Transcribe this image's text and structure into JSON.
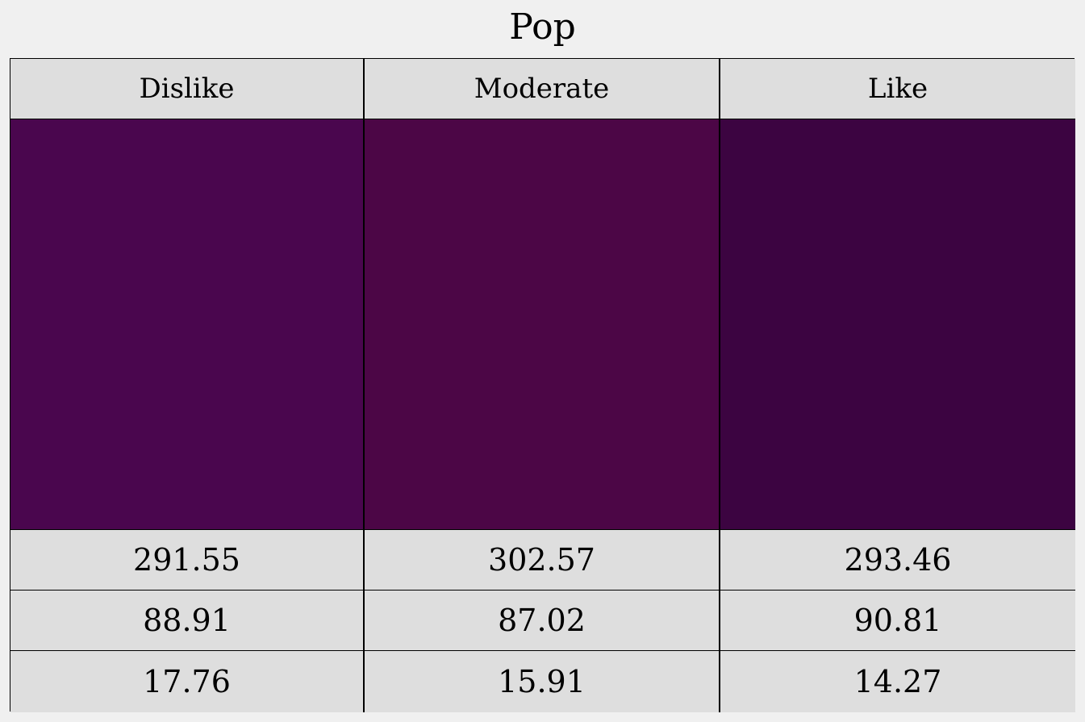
{
  "chart_data": {
    "type": "heatmap",
    "title": "Pop",
    "categories": [
      "Dislike",
      "Moderate",
      "Like"
    ],
    "swatch_colors": [
      "#4a064e",
      "#4c0646",
      "#3c0441"
    ],
    "rows": [
      [
        "291.55",
        "302.57",
        "293.46"
      ],
      [
        "88.91",
        "87.02",
        "90.81"
      ],
      [
        "17.76",
        "15.91",
        "14.27"
      ]
    ],
    "grid": true
  }
}
